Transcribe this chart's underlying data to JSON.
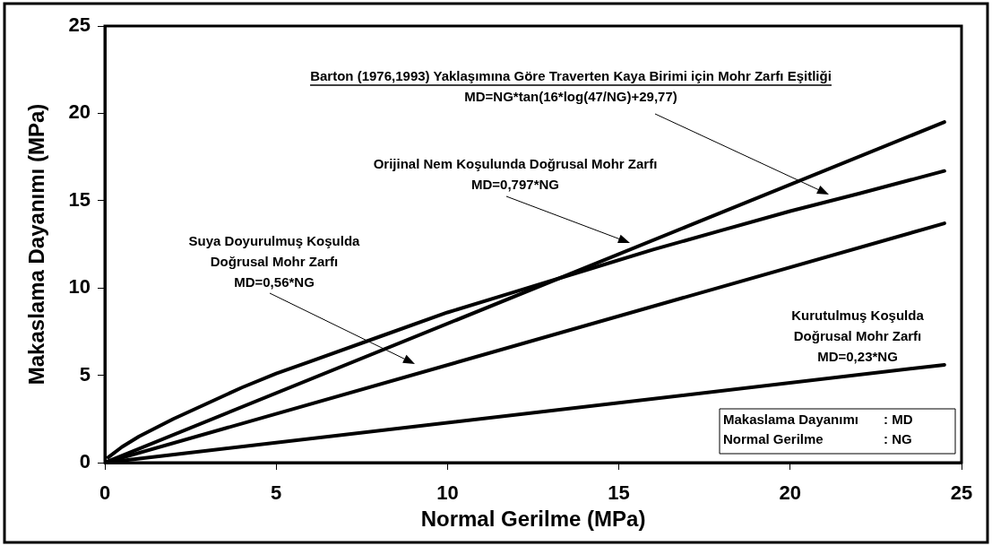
{
  "chart_data": {
    "type": "line",
    "xlabel": "Normal Gerilme (MPa)",
    "ylabel": "Makaslama Dayanımı (MPa)",
    "xlim": [
      0,
      25
    ],
    "xticks": [
      0,
      5,
      10,
      15,
      20,
      25
    ],
    "ylim": [
      0,
      25
    ],
    "yticks": [
      0,
      5,
      10,
      15,
      20,
      25
    ],
    "grid": false,
    "legend": false,
    "marker": "none",
    "line_style": "solid",
    "series": [
      {
        "color": "#000000",
        "x": [
          0,
          24.5
        ],
        "values": [
          0,
          19.5
        ]
      },
      {
        "color": "#000000",
        "x": [
          0,
          24.5
        ],
        "values": [
          0,
          13.7
        ]
      },
      {
        "color": "#000000",
        "x": [
          0,
          24.5
        ],
        "values": [
          0,
          5.6
        ]
      },
      {
        "color": "#000000",
        "x": [
          0.1,
          0.5,
          1,
          2,
          3,
          4,
          5,
          6,
          8,
          10,
          12,
          14,
          16,
          18,
          20,
          22,
          24.5
        ],
        "values": [
          0.3,
          0.9,
          1.5,
          2.5,
          3.4,
          4.3,
          5.1,
          5.8,
          7.2,
          8.6,
          9.8,
          11.0,
          12.2,
          13.3,
          14.4,
          15.4,
          16.7
        ]
      }
    ],
    "annotations": [
      "Barton (1976,1993) Yaklaşımına Göre Traverten Kaya Birimi için Mohr Zarfı Eşitliği\nMD=NG*tan(16*log(47/NG)+29,77)",
      "Orijinal Nem Koşulunda Doğrusal Mohr Zarfı\nMD=0,797*NG",
      "Suya Doyurulmuş Koşulda\nDoğrusal Mohr Zarfı\nMD=0,56*NG",
      "Kurutulmuş Koşulda\nDoğrusal Mohr Zarfı\nMD=0,23*NG",
      "Makaslama Dayanımı : MD\nNormal Gerilme : NG"
    ]
  }
}
